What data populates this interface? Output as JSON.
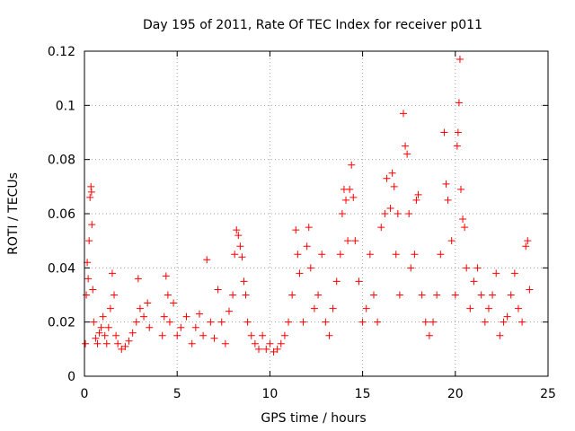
{
  "chart_data": {
    "type": "scatter",
    "title": "Day 195 of 2011, Rate Of TEC Index for receiver p011",
    "xlabel": "GPS time / hours",
    "ylabel": "ROTI / TECUs",
    "xlim": [
      0,
      25
    ],
    "ylim": [
      0,
      0.12
    ],
    "xticks": [
      0,
      5,
      10,
      15,
      20,
      25
    ],
    "xtick_labels": [
      "0",
      "5",
      "10",
      "15",
      "20",
      "25"
    ],
    "yticks": [
      0,
      0.02,
      0.04,
      0.06,
      0.08,
      0.1,
      0.12
    ],
    "ytick_labels": [
      "0",
      "0.02",
      "0.04",
      "0.06",
      "0.08",
      "0.1",
      "0.12"
    ],
    "grid": true,
    "marker": "+",
    "color": "#ff0000",
    "series": [
      {
        "points": [
          [
            0.05,
            0.012
          ],
          [
            0.1,
            0.03
          ],
          [
            0.15,
            0.042
          ],
          [
            0.2,
            0.036
          ],
          [
            0.25,
            0.05
          ],
          [
            0.3,
            0.066
          ],
          [
            0.35,
            0.07
          ],
          [
            0.38,
            0.068
          ],
          [
            0.4,
            0.056
          ],
          [
            0.45,
            0.032
          ],
          [
            0.5,
            0.02
          ],
          [
            0.6,
            0.014
          ],
          [
            0.7,
            0.012
          ],
          [
            0.8,
            0.016
          ],
          [
            0.9,
            0.018
          ],
          [
            1.0,
            0.022
          ],
          [
            1.1,
            0.015
          ],
          [
            1.2,
            0.012
          ],
          [
            1.3,
            0.018
          ],
          [
            1.4,
            0.025
          ],
          [
            1.5,
            0.038
          ],
          [
            1.6,
            0.03
          ],
          [
            1.7,
            0.015
          ],
          [
            1.8,
            0.012
          ],
          [
            2.0,
            0.01
          ],
          [
            2.2,
            0.011
          ],
          [
            2.4,
            0.013
          ],
          [
            2.6,
            0.016
          ],
          [
            2.8,
            0.02
          ],
          [
            2.9,
            0.036
          ],
          [
            3.0,
            0.025
          ],
          [
            3.2,
            0.022
          ],
          [
            3.4,
            0.027
          ],
          [
            3.5,
            0.018
          ],
          [
            4.2,
            0.015
          ],
          [
            4.3,
            0.022
          ],
          [
            4.4,
            0.037
          ],
          [
            4.5,
            0.03
          ],
          [
            4.6,
            0.02
          ],
          [
            4.8,
            0.027
          ],
          [
            5.0,
            0.015
          ],
          [
            5.2,
            0.018
          ],
          [
            5.5,
            0.022
          ],
          [
            5.8,
            0.012
          ],
          [
            6.0,
            0.018
          ],
          [
            6.2,
            0.023
          ],
          [
            6.4,
            0.015
          ],
          [
            6.6,
            0.043
          ],
          [
            6.8,
            0.02
          ],
          [
            7.0,
            0.014
          ],
          [
            7.2,
            0.032
          ],
          [
            7.4,
            0.02
          ],
          [
            7.6,
            0.012
          ],
          [
            7.8,
            0.024
          ],
          [
            8.0,
            0.03
          ],
          [
            8.1,
            0.045
          ],
          [
            8.2,
            0.054
          ],
          [
            8.3,
            0.052
          ],
          [
            8.4,
            0.048
          ],
          [
            8.5,
            0.044
          ],
          [
            8.6,
            0.035
          ],
          [
            8.7,
            0.03
          ],
          [
            8.8,
            0.02
          ],
          [
            9.0,
            0.015
          ],
          [
            9.2,
            0.012
          ],
          [
            9.4,
            0.01
          ],
          [
            9.6,
            0.015
          ],
          [
            9.8,
            0.01
          ],
          [
            10.0,
            0.012
          ],
          [
            10.2,
            0.009
          ],
          [
            10.4,
            0.01
          ],
          [
            10.6,
            0.012
          ],
          [
            10.8,
            0.015
          ],
          [
            11.0,
            0.02
          ],
          [
            11.2,
            0.03
          ],
          [
            11.4,
            0.054
          ],
          [
            11.5,
            0.045
          ],
          [
            11.6,
            0.038
          ],
          [
            11.8,
            0.02
          ],
          [
            12.0,
            0.048
          ],
          [
            12.1,
            0.055
          ],
          [
            12.2,
            0.04
          ],
          [
            12.4,
            0.025
          ],
          [
            12.6,
            0.03
          ],
          [
            12.8,
            0.045
          ],
          [
            13.0,
            0.02
          ],
          [
            13.2,
            0.015
          ],
          [
            13.4,
            0.025
          ],
          [
            13.6,
            0.035
          ],
          [
            13.8,
            0.045
          ],
          [
            13.9,
            0.06
          ],
          [
            14.0,
            0.069
          ],
          [
            14.1,
            0.065
          ],
          [
            14.2,
            0.05
          ],
          [
            14.3,
            0.069
          ],
          [
            14.4,
            0.078
          ],
          [
            14.5,
            0.066
          ],
          [
            14.6,
            0.05
          ],
          [
            14.8,
            0.035
          ],
          [
            15.0,
            0.02
          ],
          [
            15.2,
            0.025
          ],
          [
            15.4,
            0.045
          ],
          [
            15.6,
            0.03
          ],
          [
            15.8,
            0.02
          ],
          [
            16.0,
            0.055
          ],
          [
            16.2,
            0.06
          ],
          [
            16.3,
            0.073
          ],
          [
            16.5,
            0.062
          ],
          [
            16.6,
            0.075
          ],
          [
            16.7,
            0.07
          ],
          [
            16.8,
            0.045
          ],
          [
            16.9,
            0.06
          ],
          [
            17.0,
            0.03
          ],
          [
            17.2,
            0.097
          ],
          [
            17.3,
            0.085
          ],
          [
            17.4,
            0.082
          ],
          [
            17.5,
            0.06
          ],
          [
            17.6,
            0.04
          ],
          [
            17.8,
            0.045
          ],
          [
            17.9,
            0.065
          ],
          [
            18.0,
            0.067
          ],
          [
            18.2,
            0.03
          ],
          [
            18.4,
            0.02
          ],
          [
            18.6,
            0.015
          ],
          [
            18.8,
            0.02
          ],
          [
            19.0,
            0.03
          ],
          [
            19.2,
            0.045
          ],
          [
            19.4,
            0.09
          ],
          [
            19.5,
            0.071
          ],
          [
            19.6,
            0.065
          ],
          [
            19.8,
            0.05
          ],
          [
            20.0,
            0.03
          ],
          [
            20.1,
            0.085
          ],
          [
            20.15,
            0.09
          ],
          [
            20.2,
            0.101
          ],
          [
            20.25,
            0.117
          ],
          [
            20.3,
            0.069
          ],
          [
            20.4,
            0.058
          ],
          [
            20.5,
            0.055
          ],
          [
            20.6,
            0.04
          ],
          [
            20.8,
            0.025
          ],
          [
            21.0,
            0.035
          ],
          [
            21.2,
            0.04
          ],
          [
            21.4,
            0.03
          ],
          [
            21.6,
            0.02
          ],
          [
            21.8,
            0.025
          ],
          [
            22.0,
            0.03
          ],
          [
            22.2,
            0.038
          ],
          [
            22.4,
            0.015
          ],
          [
            22.6,
            0.02
          ],
          [
            22.8,
            0.022
          ],
          [
            23.0,
            0.03
          ],
          [
            23.2,
            0.038
          ],
          [
            23.4,
            0.025
          ],
          [
            23.6,
            0.02
          ],
          [
            23.8,
            0.048
          ],
          [
            23.9,
            0.05
          ],
          [
            24.0,
            0.032
          ]
        ]
      }
    ]
  }
}
